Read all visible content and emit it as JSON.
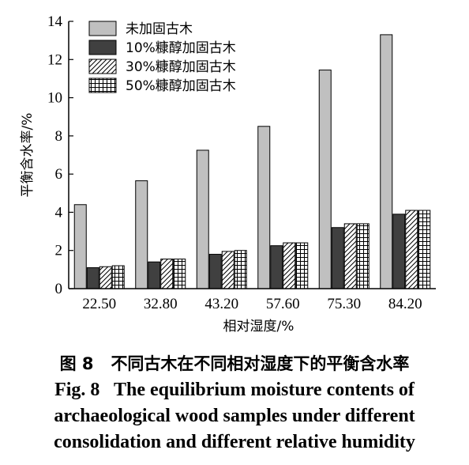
{
  "chart_data": {
    "type": "bar",
    "categories": [
      "22.50",
      "32.80",
      "43.20",
      "57.60",
      "75.30",
      "84.20"
    ],
    "series": [
      {
        "name": "未加固古木",
        "values": [
          4.4,
          5.65,
          7.25,
          8.5,
          11.45,
          13.3
        ],
        "fill": "#c0c0c0",
        "pattern": "solid"
      },
      {
        "name": "10%糠醇加固古木",
        "values": [
          1.1,
          1.4,
          1.8,
          2.25,
          3.2,
          3.9
        ],
        "fill": "#404040",
        "pattern": "solid"
      },
      {
        "name": "30%糠醇加固古木",
        "values": [
          1.15,
          1.55,
          1.95,
          2.4,
          3.4,
          4.1
        ],
        "fill": "#ffffff",
        "pattern": "diagonal"
      },
      {
        "name": "50%糠醇加固古木",
        "values": [
          1.2,
          1.55,
          2.0,
          2.4,
          3.4,
          4.1
        ],
        "fill": "#ffffff",
        "pattern": "grid"
      }
    ],
    "xlabel": "相对湿度/%",
    "ylabel": "平衡含水率/%",
    "ylim": [
      0,
      14
    ],
    "yticks": [
      0,
      2,
      4,
      6,
      8,
      10,
      12,
      14
    ],
    "grid": false,
    "legend_position": "top-left"
  },
  "caption": {
    "cn_label": "图 8",
    "cn_text": "不同古木在不同相对湿度下的平衡含水率",
    "en_label": "Fig. 8",
    "en_lines": [
      "The equilibrium moisture contents of",
      "archaeological wood samples under different",
      "consolidation and different relative humidity"
    ]
  }
}
